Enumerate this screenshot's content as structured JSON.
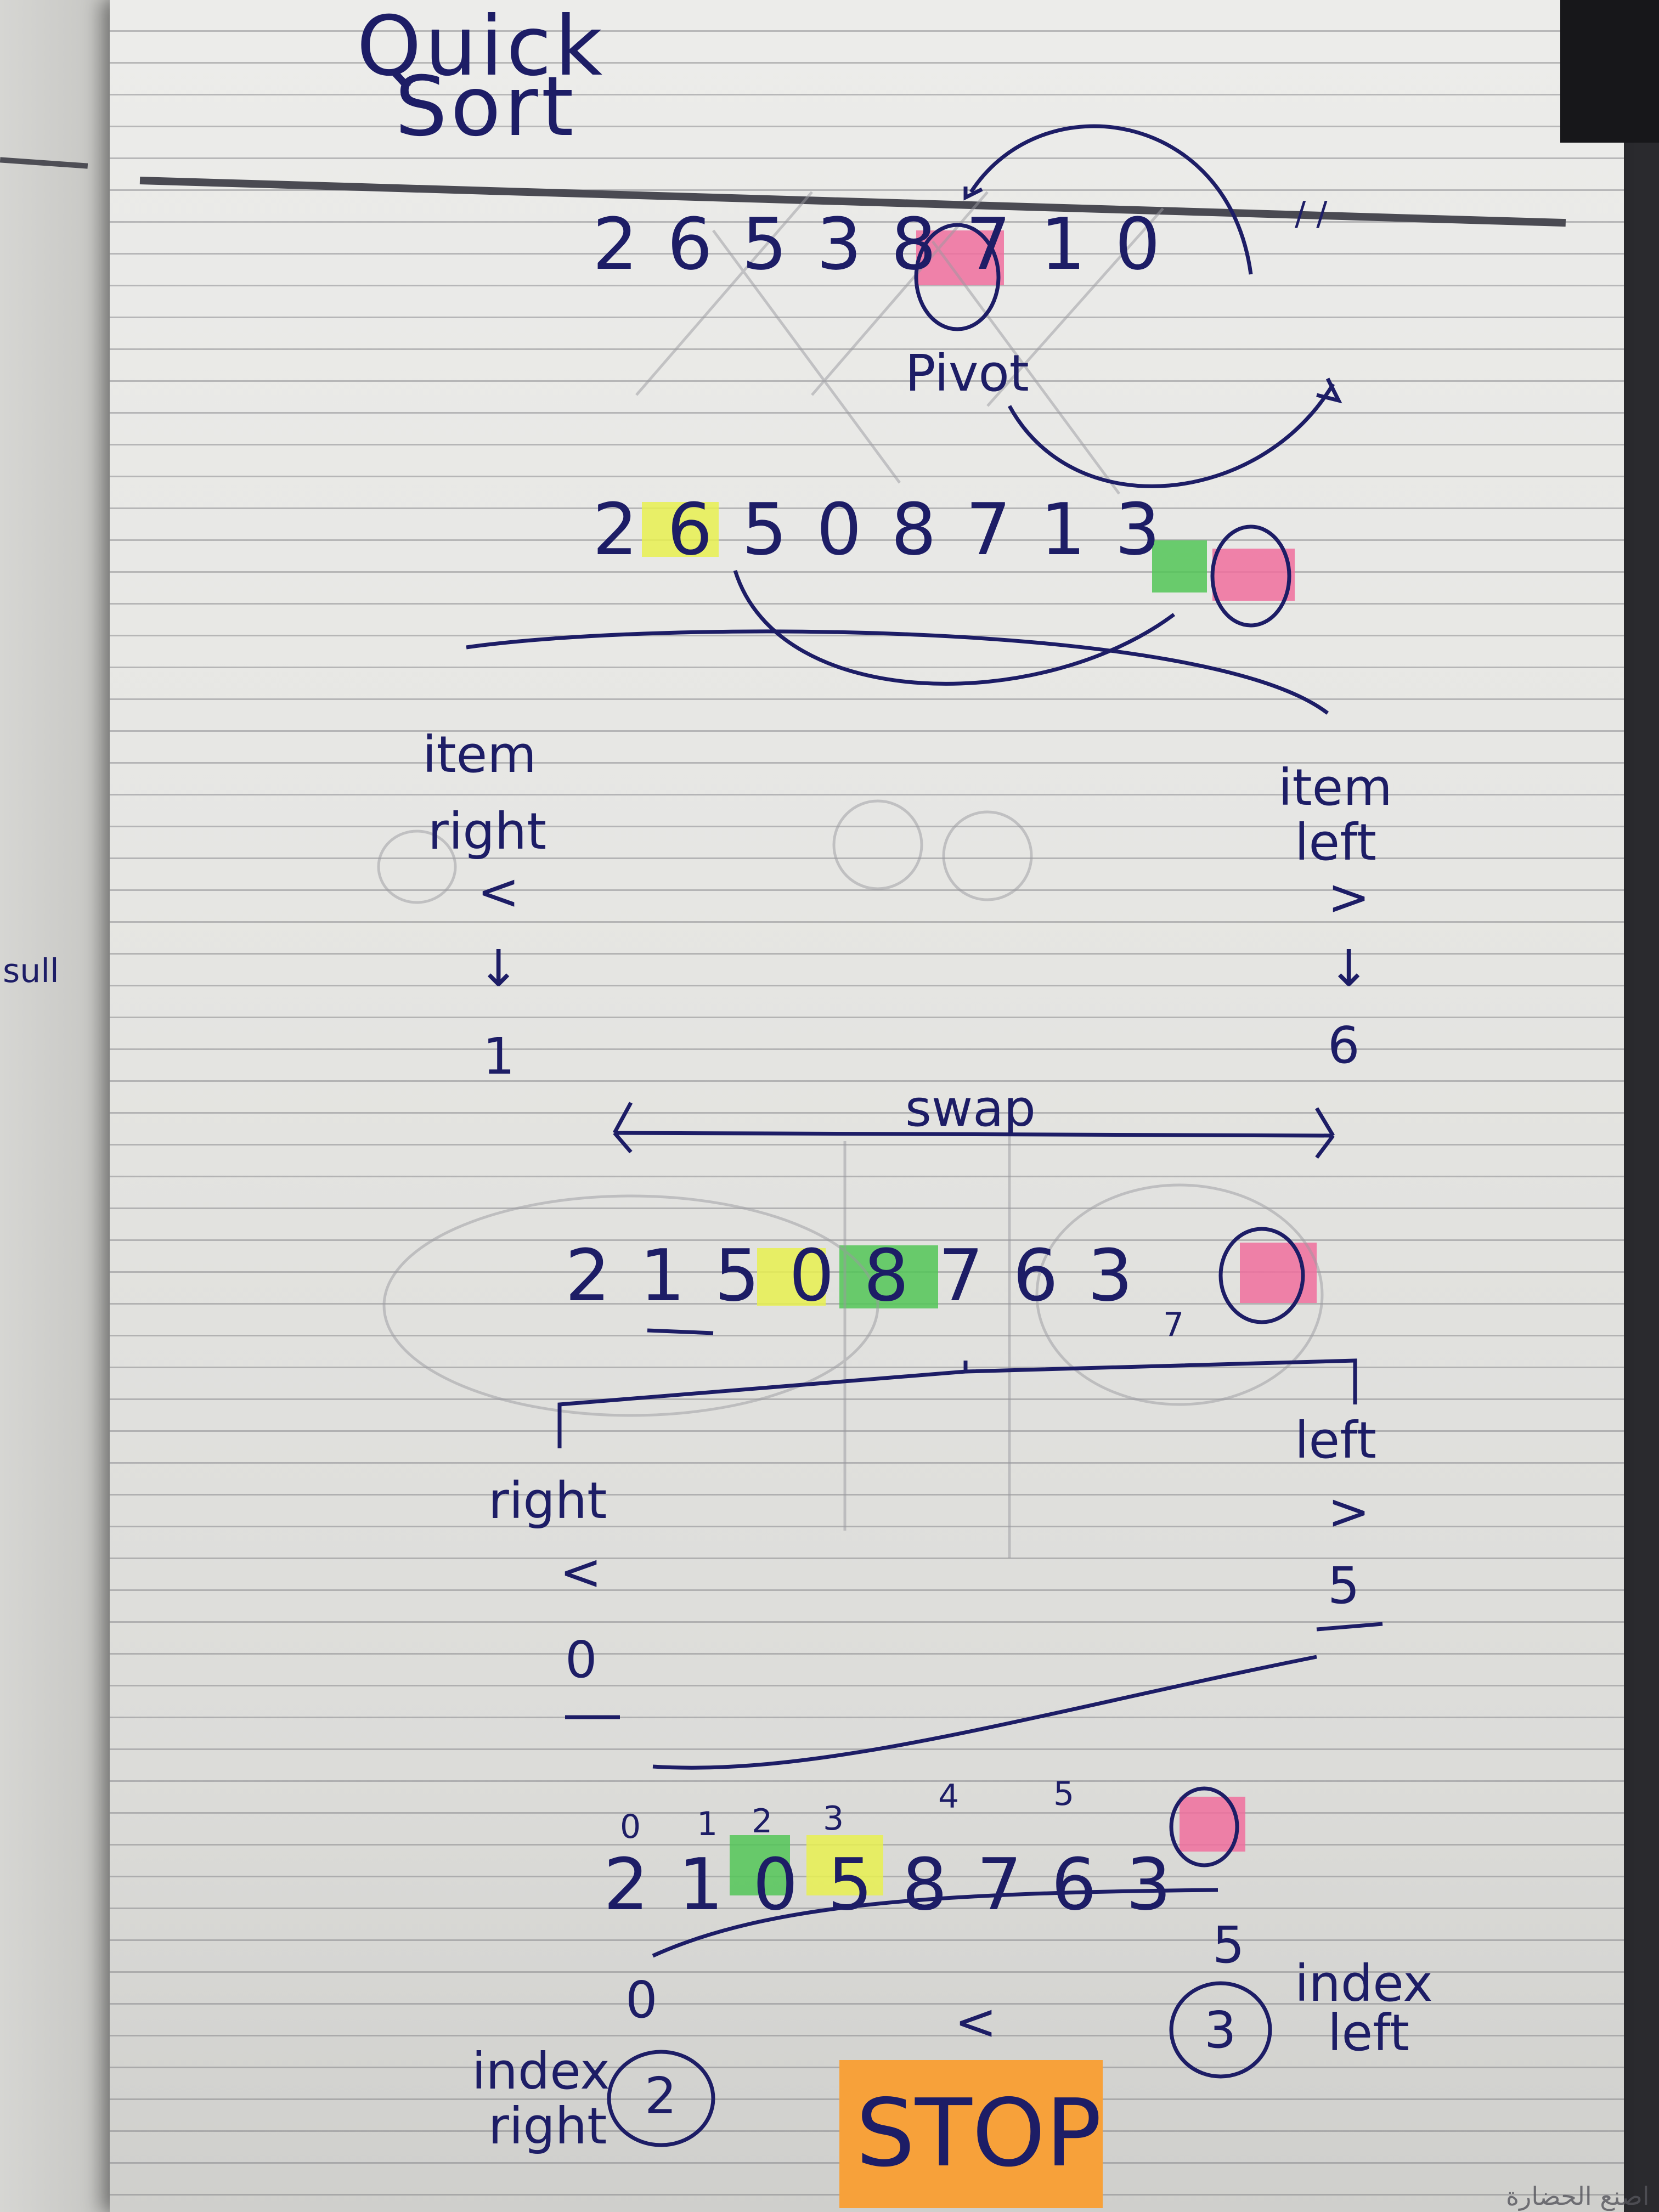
{
  "title": {
    "line1": "Quick",
    "line2": "Sort"
  },
  "colors": {
    "ink": "#1d1d66",
    "pink": "#f06f9e",
    "yellow": "#e8f050",
    "green": "#52c657",
    "orange": "#f7a13a",
    "pencil": "#9a9aa0"
  },
  "steps": [
    {
      "digits": "2 6 5 3 8 7 1 0",
      "label": "Pivot"
    },
    {
      "digits": "2 6 5 0 8 7 1 3"
    },
    {
      "left_label": [
        "item",
        "right",
        "<",
        "↓",
        "1"
      ],
      "right_label": [
        "item",
        "left",
        ">",
        "↓",
        "6"
      ],
      "action": "swap"
    },
    {
      "digits": "2 1 5 0 8 7 6 3",
      "sub": "7"
    },
    {
      "left_label": [
        "right",
        "<",
        "0"
      ],
      "right_label": [
        "left",
        ">",
        "5"
      ]
    },
    {
      "indices": [
        "0",
        "1",
        "2",
        "3",
        "4",
        "5"
      ],
      "digits": "2 1 0 5 8 7 6 3",
      "bottom_left": [
        "0",
        "index",
        "right",
        "2"
      ],
      "bottom_right": [
        "5",
        "3",
        "index",
        "left"
      ],
      "compare": "<"
    }
  ],
  "margin_note": "sull",
  "stop_label": "STOP",
  "brand_mark": "اصنع الحضارة",
  "tick_marks": "/ /"
}
